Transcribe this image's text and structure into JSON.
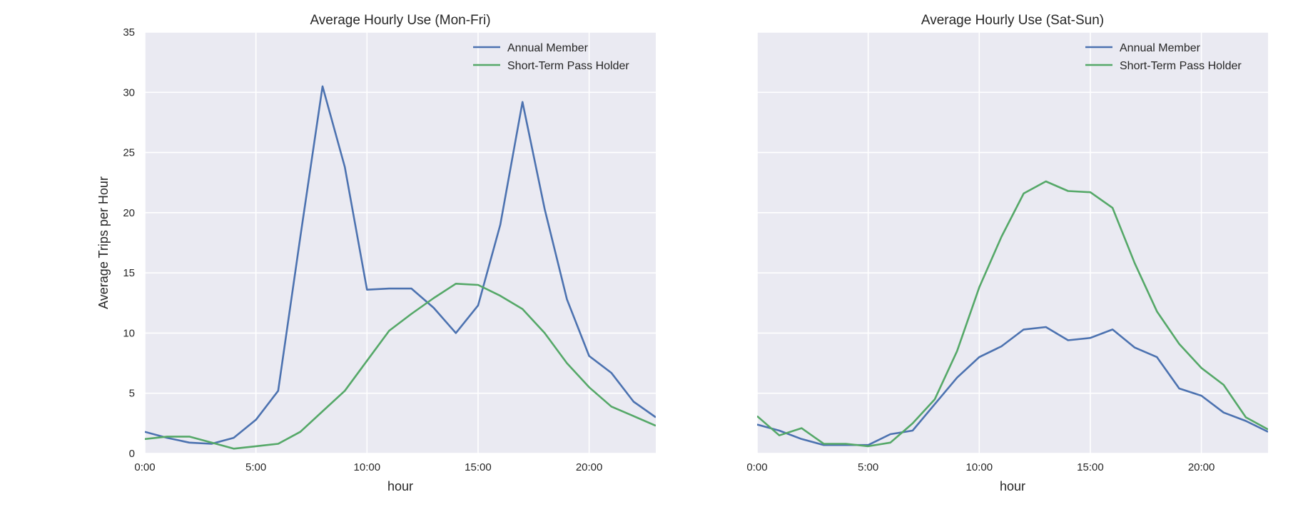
{
  "chart_data": [
    {
      "type": "line",
      "title": "Average Hourly Use (Mon-Fri)",
      "xlabel": "hour",
      "ylabel": "Average Trips per Hour",
      "xlim": [
        0,
        23
      ],
      "ylim": [
        0,
        35
      ],
      "xticks": [
        0,
        5,
        10,
        15,
        20
      ],
      "xtick_labels": [
        "0:00",
        "5:00",
        "10:00",
        "15:00",
        "20:00"
      ],
      "yticks": [
        0,
        5,
        10,
        15,
        20,
        25,
        30,
        35
      ],
      "ytick_labels": [
        "0",
        "5",
        "10",
        "15",
        "20",
        "25",
        "30",
        "35"
      ],
      "grid": true,
      "legend": "top-right",
      "x": [
        0,
        1,
        2,
        3,
        4,
        5,
        6,
        7,
        8,
        9,
        10,
        11,
        12,
        13,
        14,
        15,
        16,
        17,
        18,
        19,
        20,
        21,
        22,
        23
      ],
      "series": [
        {
          "name": "Annual Member",
          "color": "#4c72b0",
          "values": [
            1.8,
            1.3,
            0.9,
            0.8,
            1.3,
            2.8,
            5.2,
            18.0,
            30.5,
            23.8,
            13.6,
            13.7,
            13.7,
            12.1,
            10.0,
            12.3,
            19.0,
            29.2,
            20.3,
            12.8,
            8.1,
            6.7,
            4.3,
            3.0
          ]
        },
        {
          "name": "Short-Term Pass Holder",
          "color": "#55a868",
          "values": [
            1.2,
            1.4,
            1.4,
            0.9,
            0.4,
            0.6,
            0.8,
            1.8,
            3.5,
            5.2,
            7.7,
            10.2,
            11.6,
            12.9,
            14.1,
            14.0,
            13.1,
            12.0,
            10.0,
            7.5,
            5.5,
            3.9,
            3.1,
            2.3
          ]
        }
      ]
    },
    {
      "type": "line",
      "title": "Average Hourly Use (Sat-Sun)",
      "xlabel": "hour",
      "ylabel": "",
      "xlim": [
        0,
        23
      ],
      "ylim": [
        0,
        35
      ],
      "xticks": [
        0,
        5,
        10,
        15,
        20
      ],
      "xtick_labels": [
        "0:00",
        "5:00",
        "10:00",
        "15:00",
        "20:00"
      ],
      "yticks": [
        0,
        5,
        10,
        15,
        20,
        25,
        30,
        35
      ],
      "ytick_labels": [],
      "grid": true,
      "legend": "top-right",
      "x": [
        0,
        1,
        2,
        3,
        4,
        5,
        6,
        7,
        8,
        9,
        10,
        11,
        12,
        13,
        14,
        15,
        16,
        17,
        18,
        19,
        20,
        21,
        22,
        23
      ],
      "series": [
        {
          "name": "Annual Member",
          "color": "#4c72b0",
          "values": [
            2.4,
            1.9,
            1.2,
            0.7,
            0.7,
            0.7,
            1.6,
            1.9,
            4.1,
            6.3,
            8.0,
            8.9,
            10.3,
            10.5,
            9.4,
            9.6,
            10.3,
            8.8,
            8.0,
            5.4,
            4.8,
            3.4,
            2.7,
            1.8
          ]
        },
        {
          "name": "Short-Term Pass Holder",
          "color": "#55a868",
          "values": [
            3.1,
            1.5,
            2.1,
            0.8,
            0.8,
            0.6,
            0.9,
            2.5,
            4.5,
            8.5,
            13.8,
            18.0,
            21.6,
            22.6,
            21.8,
            21.7,
            20.4,
            15.8,
            11.8,
            9.1,
            7.1,
            5.7,
            3.0,
            2.0
          ]
        }
      ]
    }
  ]
}
